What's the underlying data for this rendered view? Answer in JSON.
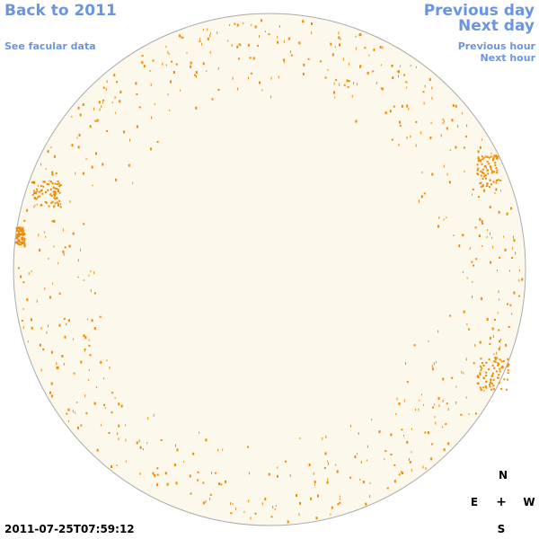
{
  "nav": {
    "back_label": "Back to 2011",
    "facular_label": "See facular data",
    "prev_day_label": "Previous day",
    "next_day_label": "Next day",
    "prev_hour_label": "Previous hour",
    "next_hour_label": "Next hour"
  },
  "timestamp": "2011-07-25T07:59:12",
  "compass": {
    "north": "N",
    "south": "S",
    "east": "E",
    "west": "W",
    "center": "+"
  },
  "colors": {
    "link": "#6b95de",
    "disk_fill": "#fdf8ec",
    "disk_outline": "#aaaaaa",
    "facula": "#f08a00"
  }
}
